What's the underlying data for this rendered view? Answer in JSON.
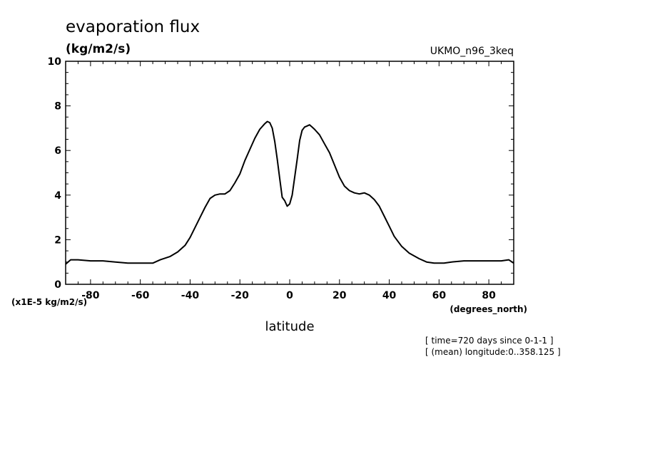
{
  "chart_data": {
    "type": "line",
    "title": "evaporation flux",
    "units_label": "(kg/m2/s)",
    "model_label": "UKMO_n96_3keq",
    "scale_label": "(x1E-5 kg/m2/s)",
    "xunits_label": "(degrees_north)",
    "xlabel": "latitude",
    "ylabel": "",
    "annotations": [
      "[ time=720 days since 0-1-1 ]",
      "[ (mean) longitude:0..358.125 ]"
    ],
    "xlim": [
      -90,
      90
    ],
    "ylim": [
      0,
      10
    ],
    "xticks": [
      -80,
      -60,
      -40,
      -20,
      0,
      20,
      40,
      60,
      80
    ],
    "xtick_labels": [
      "-80",
      "-60",
      "-40",
      "-20",
      "0",
      "20",
      "40",
      "60",
      "80"
    ],
    "yticks": [
      0,
      2,
      4,
      6,
      8,
      10
    ],
    "ytick_labels": [
      "0",
      "2",
      "4",
      "6",
      "8",
      "10"
    ],
    "grid": false,
    "series": [
      {
        "x": [
          -90,
          -88,
          -85,
          -80,
          -75,
          -70,
          -65,
          -60,
          -55,
          -52,
          -48,
          -45,
          -42,
          -40,
          -38,
          -36,
          -34,
          -32,
          -30,
          -28,
          -26,
          -24,
          -22,
          -20,
          -18,
          -16,
          -14,
          -12,
          -10,
          -9,
          -8,
          -7,
          -6,
          -5,
          -4,
          -3,
          -2,
          -1,
          0,
          1,
          2,
          3,
          4,
          5,
          6,
          7,
          8,
          9,
          10,
          12,
          14,
          16,
          18,
          20,
          22,
          24,
          26,
          28,
          30,
          32,
          34,
          36,
          38,
          40,
          42,
          45,
          48,
          52,
          55,
          58,
          62,
          65,
          70,
          75,
          80,
          85,
          88,
          90
        ],
        "y": [
          0.9,
          1.1,
          1.1,
          1.05,
          1.05,
          1.0,
          0.95,
          0.95,
          0.95,
          1.1,
          1.25,
          1.45,
          1.75,
          2.1,
          2.55,
          3.0,
          3.45,
          3.85,
          4.0,
          4.05,
          4.05,
          4.2,
          4.55,
          4.95,
          5.55,
          6.05,
          6.55,
          6.95,
          7.2,
          7.3,
          7.25,
          7.0,
          6.4,
          5.6,
          4.75,
          3.9,
          3.75,
          3.5,
          3.6,
          4.0,
          4.8,
          5.6,
          6.45,
          6.9,
          7.05,
          7.1,
          7.15,
          7.05,
          6.95,
          6.7,
          6.3,
          5.9,
          5.35,
          4.8,
          4.4,
          4.2,
          4.1,
          4.05,
          4.1,
          4.0,
          3.8,
          3.5,
          3.05,
          2.6,
          2.15,
          1.7,
          1.4,
          1.15,
          1.0,
          0.95,
          0.95,
          1.0,
          1.05,
          1.05,
          1.05,
          1.05,
          1.1,
          0.95
        ]
      }
    ]
  }
}
